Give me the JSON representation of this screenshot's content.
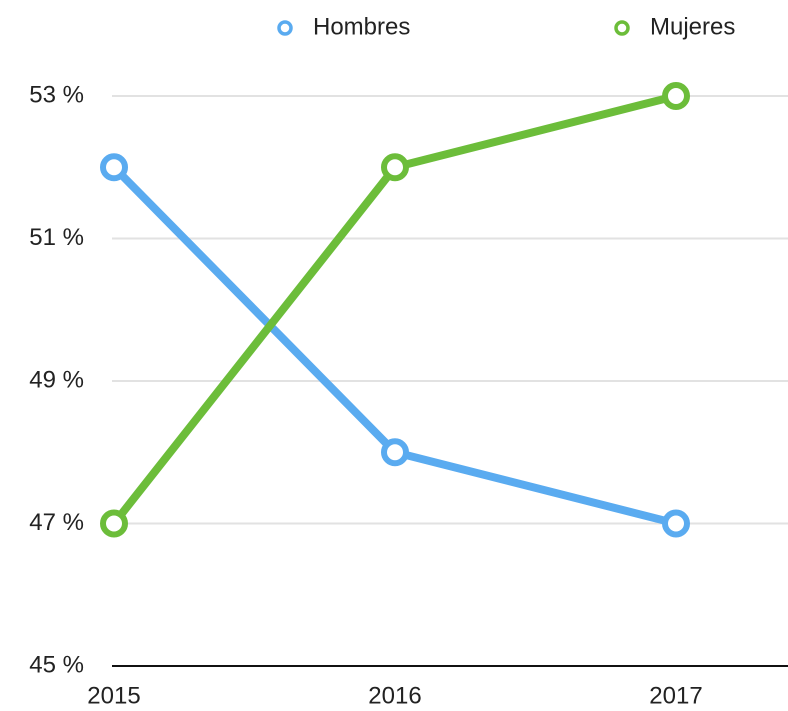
{
  "chart_data": {
    "type": "line",
    "categories": [
      "2015",
      "2016",
      "2017"
    ],
    "series": [
      {
        "name": "Hombres",
        "color": "#5aabf0",
        "values": [
          52,
          48,
          47
        ]
      },
      {
        "name": "Mujeres",
        "color": "#6cbd3a",
        "values": [
          47,
          52,
          53
        ]
      }
    ],
    "ylim": [
      45,
      53
    ],
    "yticks": [
      {
        "value": 45,
        "label": "45 %"
      },
      {
        "value": 47,
        "label": "47 %"
      },
      {
        "value": 49,
        "label": "49 %"
      },
      {
        "value": 51,
        "label": "51 %"
      },
      {
        "value": 53,
        "label": "53 %"
      }
    ],
    "grid": true,
    "legend": "top"
  }
}
